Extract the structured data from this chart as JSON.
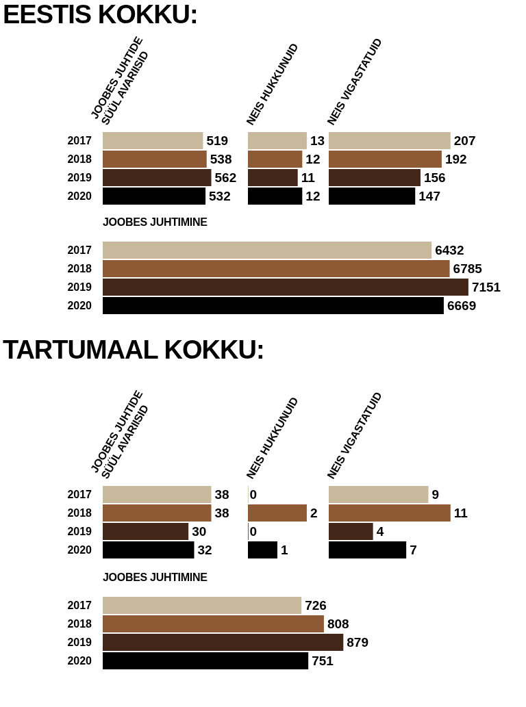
{
  "chart_data": [
    {
      "type": "bar",
      "orientation": "horizontal",
      "annotations": [
        "EESTIS KOKKU:"
      ],
      "title": "JOOBES JUHTIDE\nSÜÜL AVARIISID",
      "categories": [
        "2017",
        "2018",
        "2019",
        "2020"
      ],
      "values": [
        519,
        538,
        562,
        532
      ],
      "colors": [
        "#c9b99c",
        "#8e5a35",
        "#43281a",
        "#000000"
      ],
      "data_labels": true,
      "tick_labels": "y"
    },
    {
      "type": "bar",
      "orientation": "horizontal",
      "title": "NEIS HUKKUNUID",
      "categories": [
        "2017",
        "2018",
        "2019",
        "2020"
      ],
      "values": [
        13,
        12,
        11,
        12
      ],
      "colors": [
        "#c9b99c",
        "#8e5a35",
        "#43281a",
        "#000000"
      ],
      "data_labels": true,
      "tick_labels": false
    },
    {
      "type": "bar",
      "orientation": "horizontal",
      "title": "NEIS VIGASTATUID",
      "categories": [
        "2017",
        "2018",
        "2019",
        "2020"
      ],
      "values": [
        207,
        192,
        156,
        147
      ],
      "colors": [
        "#c9b99c",
        "#8e5a35",
        "#43281a",
        "#000000"
      ],
      "data_labels": true,
      "tick_labels": false
    },
    {
      "type": "bar",
      "orientation": "horizontal",
      "title": "JOOBES JUHTIMINE",
      "categories": [
        "2017",
        "2018",
        "2019",
        "2020"
      ],
      "values": [
        6432,
        6785,
        7151,
        6669
      ],
      "colors": [
        "#c9b99c",
        "#8e5a35",
        "#43281a",
        "#000000"
      ],
      "data_labels": true,
      "tick_labels": "y"
    },
    {
      "type": "bar",
      "orientation": "horizontal",
      "annotations": [
        "TARTUMAAL KOKKU:"
      ],
      "title": "JOOBES JUHTIDE\nSÜÜL AVARIISID",
      "categories": [
        "2017",
        "2018",
        "2019",
        "2020"
      ],
      "values": [
        38,
        38,
        30,
        32
      ],
      "colors": [
        "#c9b99c",
        "#8e5a35",
        "#43281a",
        "#000000"
      ],
      "data_labels": true,
      "tick_labels": "y"
    },
    {
      "type": "bar",
      "orientation": "horizontal",
      "title": "NEIS HUKKUNUID",
      "categories": [
        "2017",
        "2018",
        "2019",
        "2020"
      ],
      "values": [
        0,
        2,
        0,
        1
      ],
      "colors": [
        "#c9b99c",
        "#8e5a35",
        "#43281a",
        "#000000"
      ],
      "data_labels": true,
      "tick_labels": false
    },
    {
      "type": "bar",
      "orientation": "horizontal",
      "title": "NEIS VIGASTATUID",
      "categories": [
        "2017",
        "2018",
        "2019",
        "2020"
      ],
      "values": [
        9,
        11,
        4,
        7
      ],
      "colors": [
        "#c9b99c",
        "#8e5a35",
        "#43281a",
        "#000000"
      ],
      "data_labels": true,
      "tick_labels": false
    },
    {
      "type": "bar",
      "orientation": "horizontal",
      "title": "JOOBES JUHTIMINE",
      "categories": [
        "2017",
        "2018",
        "2019",
        "2020"
      ],
      "values": [
        726,
        808,
        879,
        751
      ],
      "colors": [
        "#c9b99c",
        "#8e5a35",
        "#43281a",
        "#000000"
      ],
      "data_labels": true,
      "tick_labels": "y"
    }
  ]
}
